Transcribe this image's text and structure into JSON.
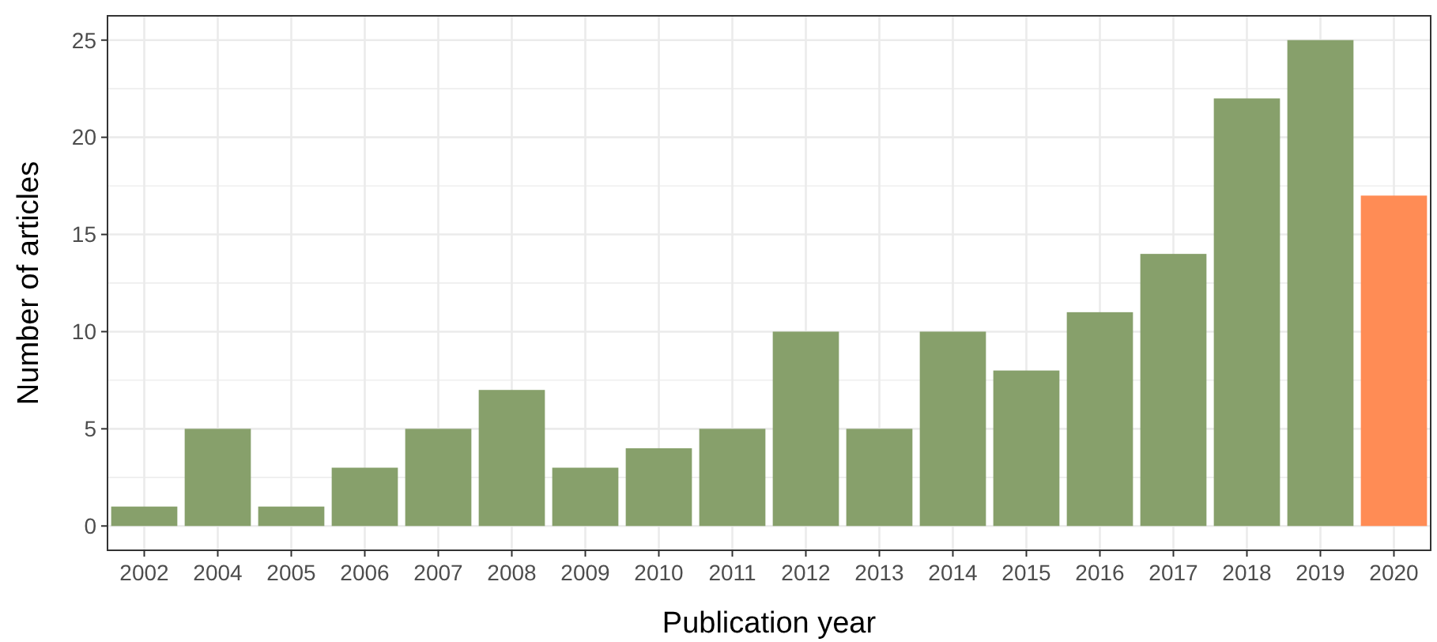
{
  "chart_data": {
    "type": "bar",
    "xlabel": "Publication year",
    "ylabel": "Number of articles",
    "categories": [
      "2002",
      "2004",
      "2005",
      "2006",
      "2007",
      "2008",
      "2009",
      "2010",
      "2011",
      "2012",
      "2013",
      "2014",
      "2015",
      "2016",
      "2017",
      "2018",
      "2019",
      "2020"
    ],
    "values": [
      1,
      5,
      1,
      3,
      5,
      7,
      3,
      4,
      5,
      10,
      5,
      10,
      8,
      11,
      14,
      22,
      25,
      17
    ],
    "colors": [
      "#87a06b",
      "#87a06b",
      "#87a06b",
      "#87a06b",
      "#87a06b",
      "#87a06b",
      "#87a06b",
      "#87a06b",
      "#87a06b",
      "#87a06b",
      "#87a06b",
      "#87a06b",
      "#87a06b",
      "#87a06b",
      "#87a06b",
      "#87a06b",
      "#87a06b",
      "#ff8c55"
    ],
    "ylim": [
      -1.25,
      26.25
    ],
    "yticks": [
      0,
      {
        "value": 2.5,
        "label": null
      },
      5,
      {
        "value": 7.5,
        "label": null
      },
      10,
      {
        "value": 12.5,
        "label": null
      },
      15,
      {
        "value": 17.5,
        "label": null
      },
      20,
      {
        "value": 22.5,
        "label": null
      },
      25
    ],
    "grid": true
  }
}
